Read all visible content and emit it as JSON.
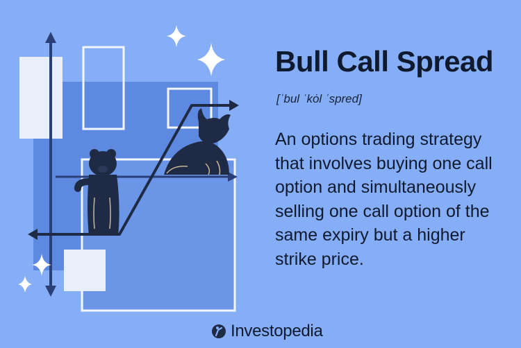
{
  "term": "Bull Call Spread",
  "pronunciation": "[ˈbul ˈkȯl ˈspred]",
  "definition": "An options trading strategy that involves buying one call option and simultaneously selling one call option of the same expiry but a higher strike price.",
  "brand": {
    "name": "Investopedia",
    "logo_icon": "investopedia-logo-icon"
  },
  "colors": {
    "background": "#86aef7",
    "text": "#0f1a2e",
    "panel_dark": "#5d8ae0",
    "panel_light": "#e9eefb",
    "outline": "#f4f6fd",
    "animal": "#1f2a44",
    "arrow": "#2a3f78"
  }
}
